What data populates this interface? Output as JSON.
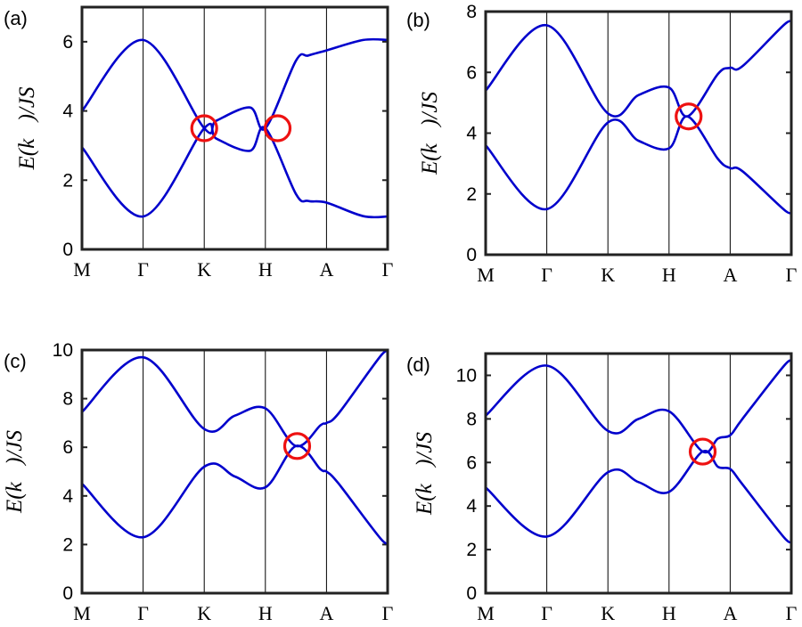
{
  "ylabel_text": "E(k⃗)/JS",
  "chart_data": [
    {
      "type": "line",
      "panel_label": "(a)",
      "xtick_labels": [
        "M",
        "Γ",
        "K",
        "H",
        "A",
        "Γ"
      ],
      "ylim": [
        0,
        7
      ],
      "yticks": [
        0,
        2,
        4,
        6
      ],
      "ylabel": "E(k⃗)/JS",
      "grid": "vertical lines at high-symmetry points",
      "series": [
        {
          "values": [
            [
              0,
              4.0
            ],
            [
              1,
              6.05
            ],
            [
              2,
              3.5
            ],
            [
              2.2,
              3.72
            ],
            [
              2.75,
              4.1
            ],
            [
              3.0,
              3.5
            ],
            [
              3.5,
              5.45
            ],
            [
              3.7,
              5.6
            ],
            [
              4.0,
              5.75
            ],
            [
              4.6,
              6.05
            ],
            [
              5.0,
              6.05
            ]
          ]
        },
        {
          "values": [
            [
              0,
              2.95
            ],
            [
              1,
              0.95
            ],
            [
              2,
              3.5
            ],
            [
              2.2,
              3.2
            ],
            [
              2.75,
              2.85
            ],
            [
              3.0,
              3.5
            ],
            [
              3.5,
              1.6
            ],
            [
              3.7,
              1.4
            ],
            [
              4.0,
              1.35
            ],
            [
              4.6,
              0.96
            ],
            [
              5.0,
              0.95
            ]
          ]
        }
      ],
      "markers": [
        {
          "x": 2.0,
          "y": 3.5
        },
        {
          "x": 3.2,
          "y": 3.5
        }
      ]
    },
    {
      "type": "line",
      "panel_label": "(b)",
      "xtick_labels": [
        "M",
        "Γ",
        "K",
        "H",
        "A",
        "Γ"
      ],
      "ylim": [
        0,
        8
      ],
      "yticks": [
        0,
        2,
        4,
        6,
        8
      ],
      "ylabel": "E(k⃗)/JS",
      "grid": "vertical lines at high-symmetry points",
      "series": [
        {
          "values": [
            [
              0,
              5.4
            ],
            [
              1,
              7.55
            ],
            [
              2,
              4.65
            ],
            [
              2.5,
              5.25
            ],
            [
              3,
              5.5
            ],
            [
              3.3,
              4.55
            ],
            [
              3.8,
              5.95
            ],
            [
              4,
              6.15
            ],
            [
              4.2,
              6.2
            ],
            [
              4.9,
              7.6
            ],
            [
              5,
              7.55
            ]
          ]
        },
        {
          "values": [
            [
              0,
              3.6
            ],
            [
              1,
              1.5
            ],
            [
              2,
              4.35
            ],
            [
              2.5,
              3.75
            ],
            [
              3,
              3.5
            ],
            [
              3.3,
              4.55
            ],
            [
              3.8,
              3.15
            ],
            [
              4,
              2.85
            ],
            [
              4.2,
              2.75
            ],
            [
              4.9,
              1.45
            ],
            [
              5,
              1.5
            ]
          ]
        }
      ],
      "markers": [
        {
          "x": 3.32,
          "y": 4.55
        }
      ]
    },
    {
      "type": "line",
      "panel_label": "(c)",
      "xtick_labels": [
        "M",
        "Γ",
        "K",
        "H",
        "A",
        "Γ"
      ],
      "ylim": [
        0,
        10
      ],
      "yticks": [
        0,
        2,
        4,
        6,
        8,
        10
      ],
      "ylabel": "E(k⃗)/JS",
      "grid": "vertical lines at high-symmetry points",
      "series": [
        {
          "values": [
            [
              0,
              7.45
            ],
            [
              1,
              9.7
            ],
            [
              2,
              6.75
            ],
            [
              2.5,
              7.3
            ],
            [
              3,
              7.6
            ],
            [
              3.5,
              6.05
            ],
            [
              3.9,
              6.9
            ],
            [
              4,
              7.0
            ],
            [
              4.2,
              7.4
            ],
            [
              4.9,
              9.8
            ],
            [
              5,
              9.75
            ]
          ]
        },
        {
          "values": [
            [
              0,
              4.5
            ],
            [
              1,
              2.3
            ],
            [
              2,
              5.2
            ],
            [
              2.5,
              4.8
            ],
            [
              3,
              4.35
            ],
            [
              3.5,
              6.05
            ],
            [
              3.9,
              5.1
            ],
            [
              4,
              5.0
            ],
            [
              4.2,
              4.5
            ],
            [
              4.9,
              2.2
            ],
            [
              5,
              2.25
            ]
          ]
        }
      ],
      "markers": [
        {
          "x": 3.52,
          "y": 6.05
        }
      ]
    },
    {
      "type": "line",
      "panel_label": "(d)",
      "xtick_labels": [
        "M",
        "Γ",
        "K",
        "H",
        "A",
        "Γ"
      ],
      "ylim": [
        0,
        11
      ],
      "yticks": [
        0,
        2,
        4,
        6,
        8,
        10
      ],
      "ylabel": "E(k⃗)/JS",
      "grid": "vertical lines at high-symmetry points",
      "series": [
        {
          "values": [
            [
              0,
              8.15
            ],
            [
              1,
              10.45
            ],
            [
              2,
              7.45
            ],
            [
              2.5,
              8.0
            ],
            [
              3,
              8.35
            ],
            [
              3.55,
              6.5
            ],
            [
              3.8,
              7.1
            ],
            [
              4,
              7.25
            ],
            [
              4.2,
              8.0
            ],
            [
              4.9,
              10.5
            ],
            [
              5,
              10.5
            ]
          ]
        },
        {
          "values": [
            [
              0,
              4.85
            ],
            [
              1,
              2.6
            ],
            [
              2,
              5.55
            ],
            [
              2.5,
              5.1
            ],
            [
              3,
              4.65
            ],
            [
              3.55,
              6.5
            ],
            [
              3.8,
              5.8
            ],
            [
              4,
              5.7
            ],
            [
              4.2,
              5.0
            ],
            [
              4.9,
              2.5
            ],
            [
              5,
              2.55
            ]
          ]
        }
      ],
      "markers": [
        {
          "x": 3.55,
          "y": 6.5
        }
      ]
    }
  ]
}
